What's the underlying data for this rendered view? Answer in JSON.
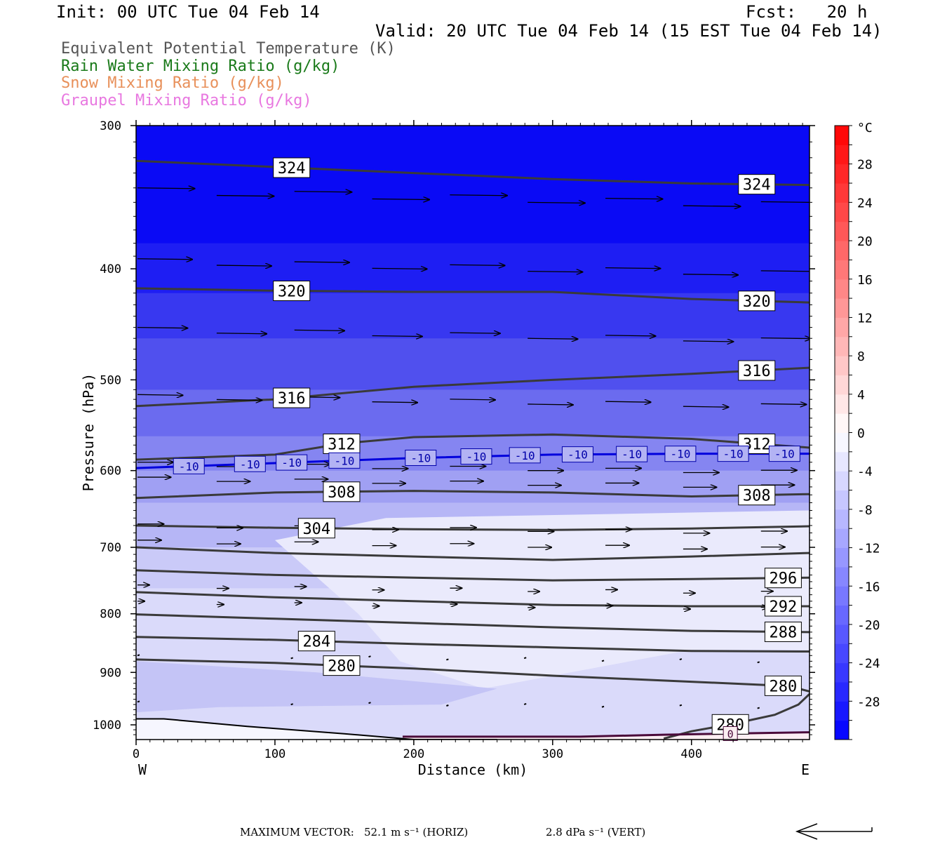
{
  "header": {
    "init": "Init: 00 UTC Tue 04 Feb 14",
    "fcst": "Fcst:   20 h",
    "valid": "Valid: 20 UTC Tue 04 Feb 14 (15 EST Tue 04 Feb 14)"
  },
  "legend": [
    {
      "text": "Equivalent Potential Temperature (K)",
      "color": "#555555"
    },
    {
      "text": "Rain Water Mixing Ratio (g/kg)",
      "color": "#1a7a1a"
    },
    {
      "text": "Snow Mixing Ratio (g/kg)",
      "color": "#e8905a"
    },
    {
      "text": "Graupel Mixing Ratio (g/kg)",
      "color": "#e878e0"
    }
  ],
  "footer": {
    "max_vector_label": "MAXIMUM VECTOR:",
    "horiz": "52.1 m s⁻¹ (HORIZ)",
    "vert": "2.8 dPa s⁻¹ (VERT)"
  },
  "chart_data": {
    "type": "cross-section",
    "xlabel": "Distance (km)",
    "ylabel": "Pressure (hPa)",
    "xlim": [
      0,
      485
    ],
    "ylim": [
      1030,
      300
    ],
    "y_scale": "log",
    "x_ticks": [
      0,
      100,
      200,
      300,
      400
    ],
    "x_end_labels": {
      "left": "W",
      "right": "E"
    },
    "y_ticks": [
      300,
      400,
      500,
      600,
      700,
      800,
      900,
      1000
    ],
    "colorbar": {
      "unit": "°C",
      "levels": [
        -32,
        -30,
        -28,
        -26,
        -24,
        -22,
        -20,
        -18,
        -16,
        -14,
        -12,
        -10,
        -8,
        -6,
        -4,
        -2,
        0,
        2,
        4,
        6,
        8,
        10,
        12,
        14,
        16,
        18,
        20,
        22,
        24,
        26,
        28,
        30,
        32
      ],
      "labels": [
        28,
        24,
        20,
        16,
        12,
        8,
        4,
        0,
        -4,
        -8,
        -12,
        -16,
        -20,
        -24,
        -28
      ],
      "cold_color": "#0000ff",
      "warm_color": "#ff0000"
    },
    "theta_e_contours": [
      {
        "value": 324,
        "x": [
          0,
          100,
          200,
          300,
          400,
          485
        ],
        "p": [
          322,
          326,
          330,
          334,
          337,
          338
        ],
        "labels": [
          [
            112,
            324
          ],
          [
            447,
            324
          ]
        ]
      },
      {
        "value": 320,
        "x": [
          0,
          100,
          200,
          300,
          400,
          485
        ],
        "p": [
          416,
          418,
          419,
          419,
          425,
          428
        ],
        "labels": [
          [
            112,
            320
          ],
          [
            447,
            320
          ]
        ]
      },
      {
        "value": 316,
        "x": [
          0,
          100,
          200,
          300,
          400,
          485
        ],
        "p": [
          527,
          520,
          507,
          500,
          494,
          488
        ],
        "labels": [
          [
            112,
            316
          ],
          [
            447,
            316
          ]
        ]
      },
      {
        "value": 312,
        "x": [
          0,
          100,
          150,
          200,
          300,
          400,
          485
        ],
        "p": [
          587,
          581,
          568,
          561,
          558,
          563,
          573
        ],
        "labels": [
          [
            148,
            312
          ],
          [
            447,
            312
          ]
        ]
      },
      {
        "value": 308,
        "x": [
          0,
          100,
          200,
          300,
          400,
          485
        ],
        "p": [
          634,
          627,
          625,
          627,
          632,
          629
        ],
        "labels": [
          [
            148,
            308
          ],
          [
            447,
            308
          ]
        ]
      },
      {
        "value": 304,
        "x": [
          0,
          100,
          200,
          300,
          400,
          485
        ],
        "p": [
          670,
          673,
          675,
          676,
          674,
          671
        ],
        "labels": [
          [
            130,
            304
          ]
        ]
      },
      {
        "value": 300,
        "x": [
          0,
          100,
          200,
          300,
          400,
          485
        ],
        "p": [
          700,
          708,
          713,
          718,
          713,
          708
        ],
        "labels": []
      },
      {
        "value": 296,
        "x": [
          0,
          100,
          200,
          300,
          400,
          485
        ],
        "p": [
          733,
          740,
          744,
          748,
          746,
          744
        ],
        "labels": [
          [
            466,
            296
          ]
        ]
      },
      {
        "value": 292,
        "x": [
          0,
          100,
          200,
          300,
          400,
          485
        ],
        "p": [
          766,
          774,
          780,
          786,
          788,
          788
        ],
        "labels": [
          [
            466,
            292
          ]
        ]
      },
      {
        "value": 288,
        "x": [
          0,
          100,
          200,
          300,
          400,
          485
        ],
        "p": [
          801,
          808,
          815,
          822,
          828,
          830
        ],
        "labels": [
          [
            466,
            288
          ]
        ]
      },
      {
        "value": 284,
        "x": [
          0,
          100,
          200,
          300,
          400,
          485
        ],
        "p": [
          838,
          843,
          850,
          856,
          862,
          863
        ],
        "labels": [
          [
            130,
            284
          ]
        ]
      },
      {
        "value": 280,
        "x": [
          0,
          100,
          200,
          300,
          400,
          470,
          485
        ],
        "p": [
          877,
          883,
          893,
          906,
          917,
          925,
          935
        ],
        "labels": [
          [
            148,
            280
          ],
          [
            466,
            280
          ]
        ]
      },
      {
        "value": 280,
        "x": [
          380,
          400,
          430,
          460,
          477,
          485
        ],
        "p": [
          1028,
          1013,
          998,
          980,
          960,
          940
        ],
        "labels": [
          [
            428,
            280
          ]
        ]
      }
    ],
    "isotherm_minus10": {
      "value": -10,
      "x": [
        0,
        100,
        200,
        300,
        400,
        485
      ],
      "p": [
        597,
        591,
        585,
        581,
        580,
        580
      ],
      "labels": [
        38,
        82,
        112,
        150,
        205,
        245,
        280,
        318,
        357,
        392,
        430,
        467
      ]
    },
    "isotherm_0": {
      "value": 0,
      "x": [
        192,
        250,
        320,
        380,
        485
      ],
      "p": [
        1024,
        1024,
        1024,
        1020,
        1015
      ],
      "labels": [
        428
      ]
    },
    "terrain_line": {
      "x": [
        0,
        20,
        80,
        150,
        200,
        260
      ],
      "p": [
        988,
        988,
        1003,
        1018,
        1030,
        1030
      ]
    },
    "wind_rows": [
      {
        "p": 340,
        "len": 48
      },
      {
        "p": 392,
        "len": 46
      },
      {
        "p": 450,
        "len": 42
      },
      {
        "p": 515,
        "len": 38
      },
      {
        "p": 590,
        "len": 30
      },
      {
        "p": 608,
        "len": 28
      },
      {
        "p": 668,
        "len": 22
      },
      {
        "p": 690,
        "len": 20
      },
      {
        "p": 755,
        "len": 10
      },
      {
        "p": 780,
        "len": 6
      },
      {
        "p": 870,
        "len": 2
      },
      {
        "p": 955,
        "len": 1
      }
    ],
    "wind_columns_km": [
      0,
      56,
      112,
      168,
      224,
      280,
      336,
      392,
      448
    ]
  }
}
